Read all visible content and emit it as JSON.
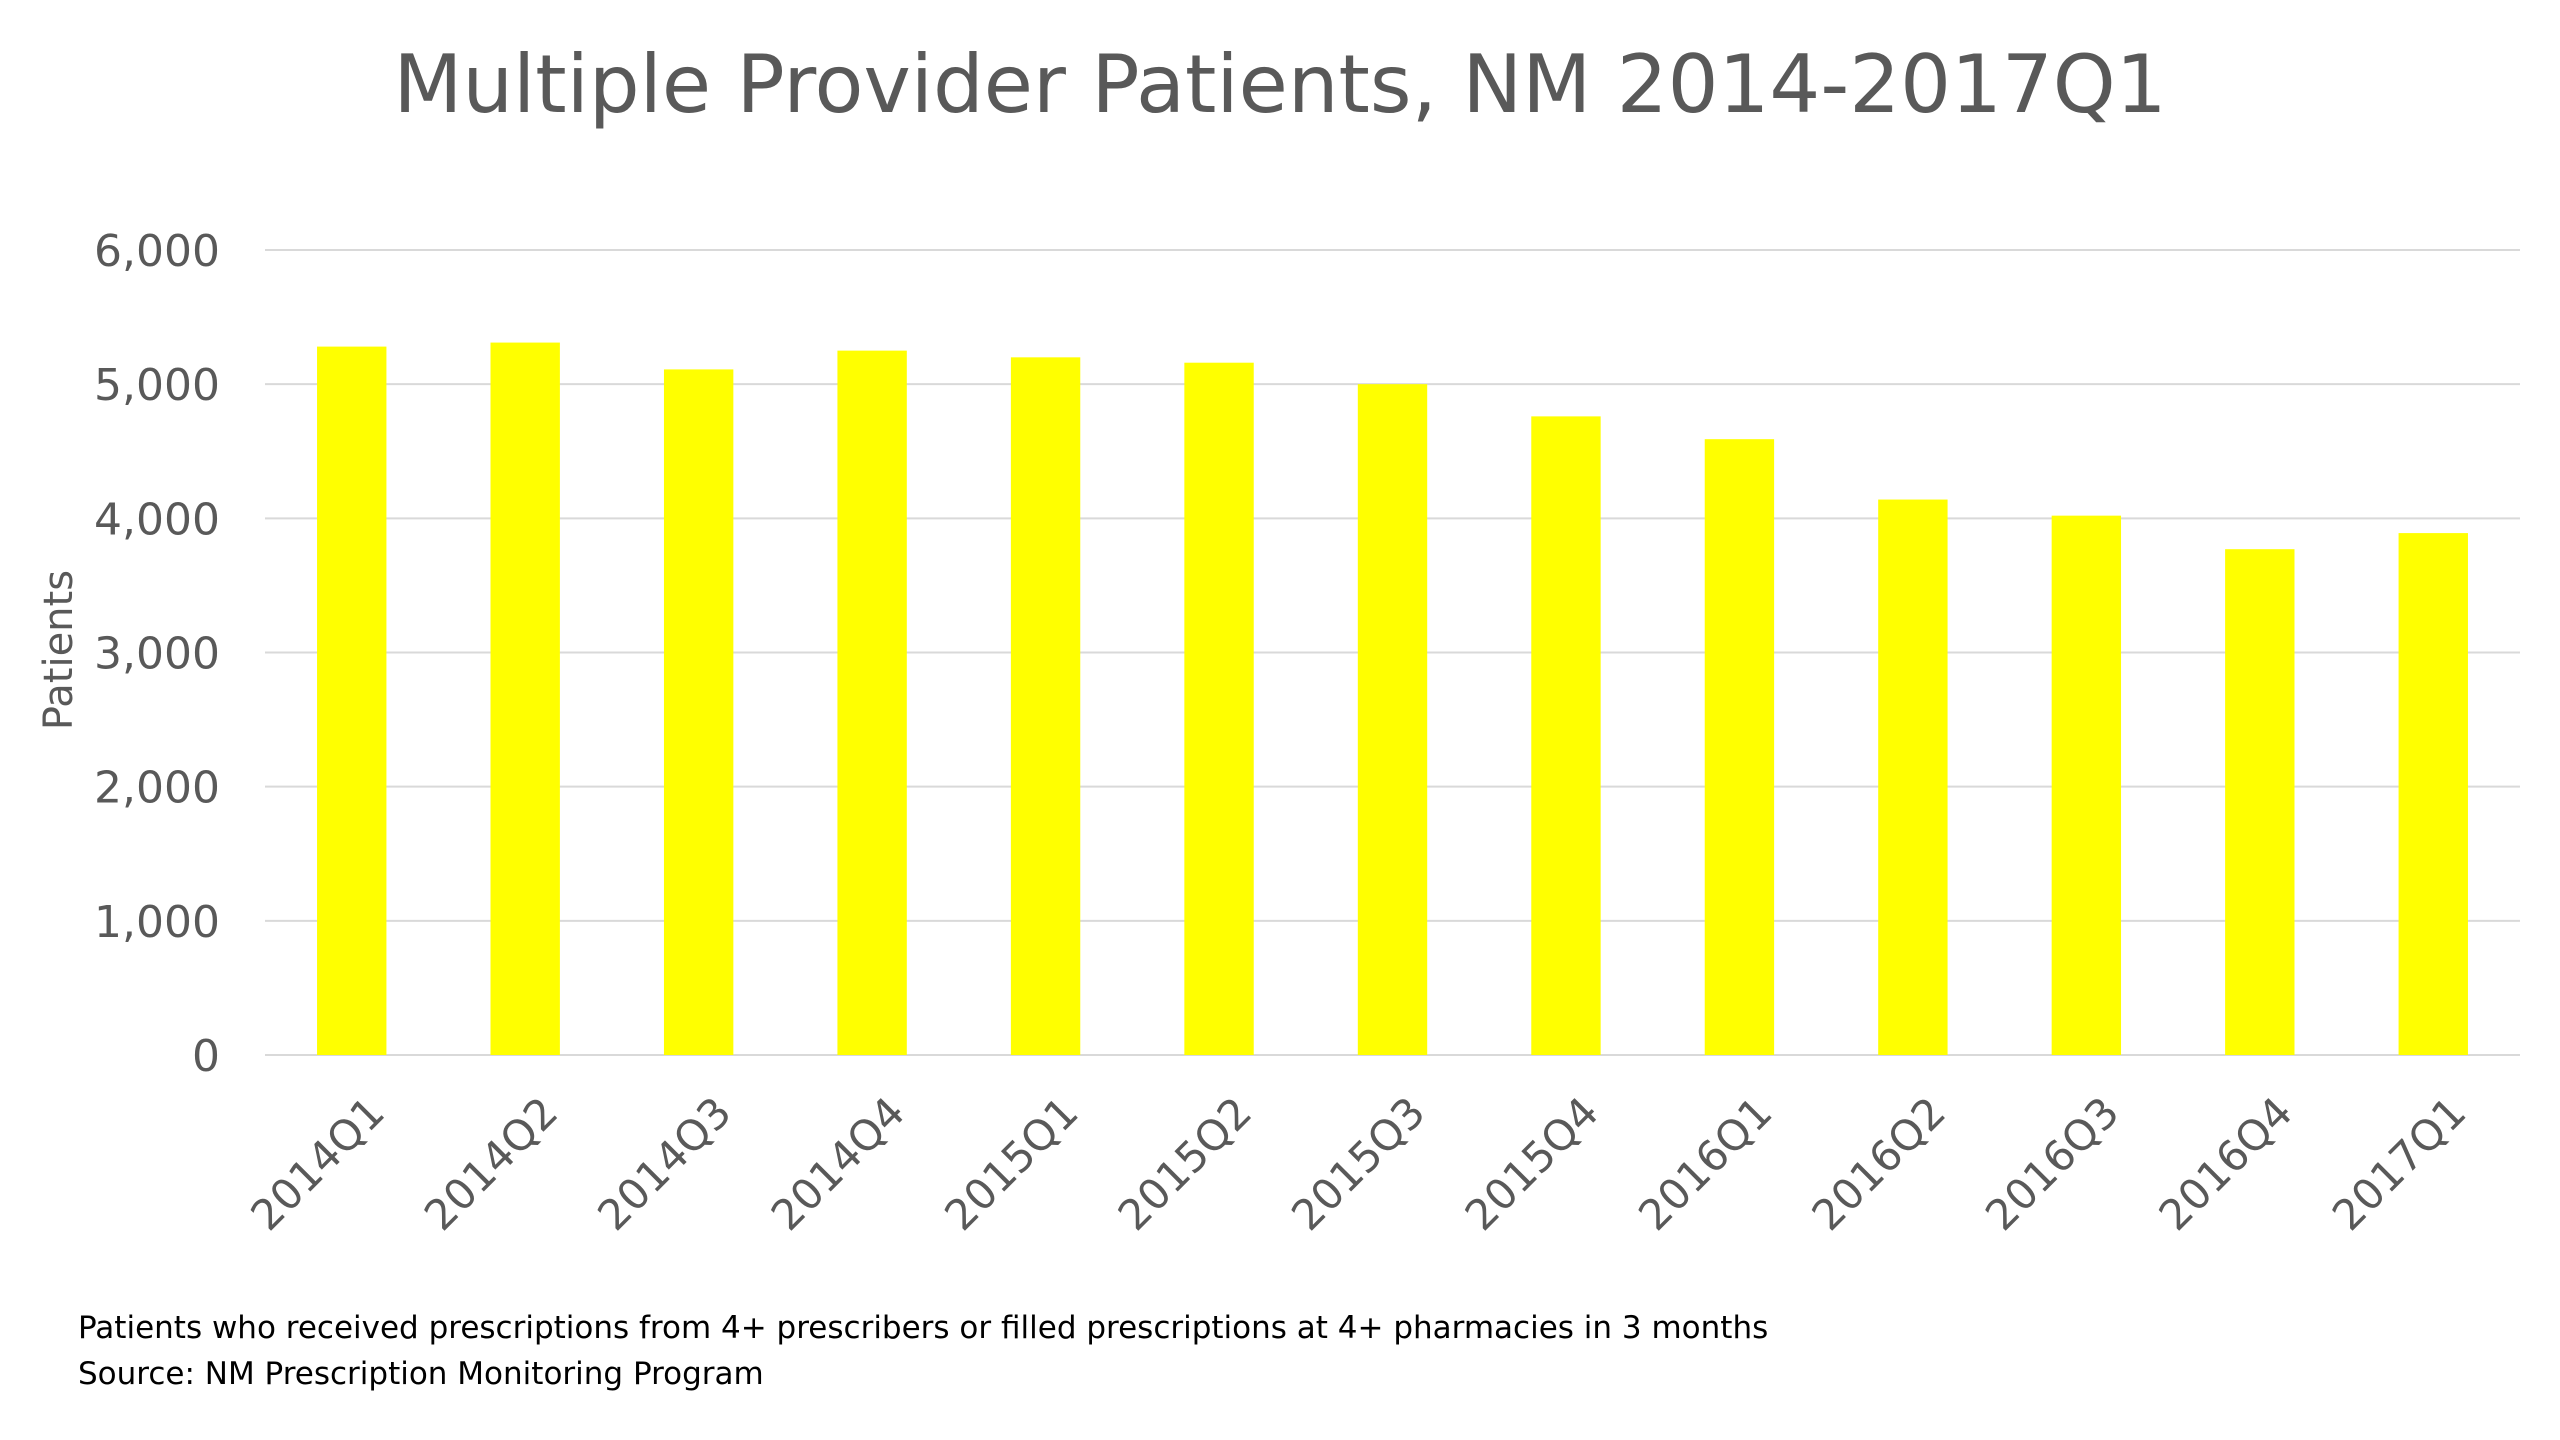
{
  "chart_data": {
    "type": "bar",
    "title": "Multiple Provider Patients, NM 2014-2017Q1",
    "xlabel": "",
    "ylabel": "Patients",
    "ylim": [
      0,
      6000
    ],
    "yticks": [
      "0",
      "1,000",
      "2,000",
      "3,000",
      "4,000",
      "5,000",
      "6,000"
    ],
    "ytick_values": [
      0,
      1000,
      2000,
      3000,
      4000,
      5000,
      6000
    ],
    "categories": [
      "2014Q1",
      "2014Q2",
      "2014Q3",
      "2014Q4",
      "2015Q1",
      "2015Q2",
      "2015Q3",
      "2015Q4",
      "2016Q1",
      "2016Q2",
      "2016Q3",
      "2016Q4",
      "2017Q1"
    ],
    "values": [
      5280,
      5310,
      5110,
      5250,
      5200,
      5160,
      5000,
      4760,
      4590,
      4140,
      4020,
      3770,
      3890
    ],
    "bar_color": "#FFFF00",
    "grid": true,
    "legend": "none"
  },
  "footnotes": {
    "definition": "Patients who received prescriptions from 4+ prescribers or filled prescriptions at 4+ pharmacies in 3 months",
    "source": "Source:  NM Prescription Monitoring Program"
  }
}
